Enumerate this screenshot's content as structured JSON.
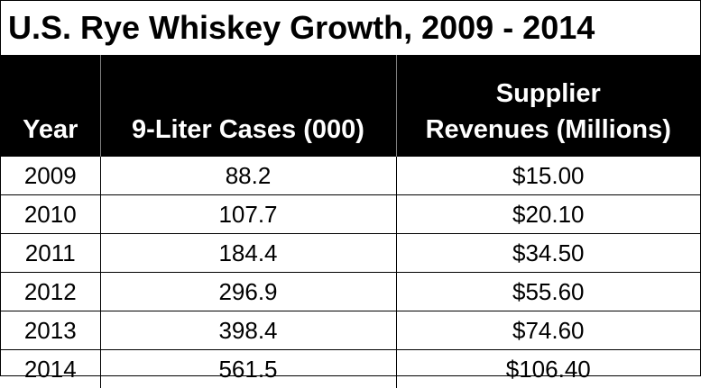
{
  "title": "U.S. Rye Whiskey Growth, 2009 - 2014",
  "chart_data": {
    "type": "table",
    "title": "U.S. Rye Whiskey Growth, 2009 - 2014",
    "columns": [
      "Year",
      "9-Liter Cases (000)",
      "Supplier Revenues (Millions)"
    ],
    "header_lines": {
      "year": "Year",
      "cases": "9-Liter Cases (000)",
      "revenue_line1": "Supplier",
      "revenue_line2": "Revenues (Millions)"
    },
    "rows": [
      {
        "year": "2009",
        "cases": "88.2",
        "revenue": "$15.00"
      },
      {
        "year": "2010",
        "cases": "107.7",
        "revenue": "$20.10"
      },
      {
        "year": "2011",
        "cases": "184.4",
        "revenue": "$34.50"
      },
      {
        "year": "2012",
        "cases": "296.9",
        "revenue": "$55.60"
      },
      {
        "year": "2013",
        "cases": "398.4",
        "revenue": "$74.60"
      },
      {
        "year": "2014",
        "cases": "561.5",
        "revenue": "$106.40"
      }
    ],
    "values": {
      "cases_thousands": [
        88.2,
        107.7,
        184.4,
        296.9,
        398.4,
        561.5
      ],
      "revenue_millions": [
        15.0,
        20.1,
        34.5,
        55.6,
        74.6,
        106.4
      ]
    }
  },
  "colors": {
    "header_background": "#000000",
    "header_text": "#ffffff",
    "body_text": "#000000"
  }
}
